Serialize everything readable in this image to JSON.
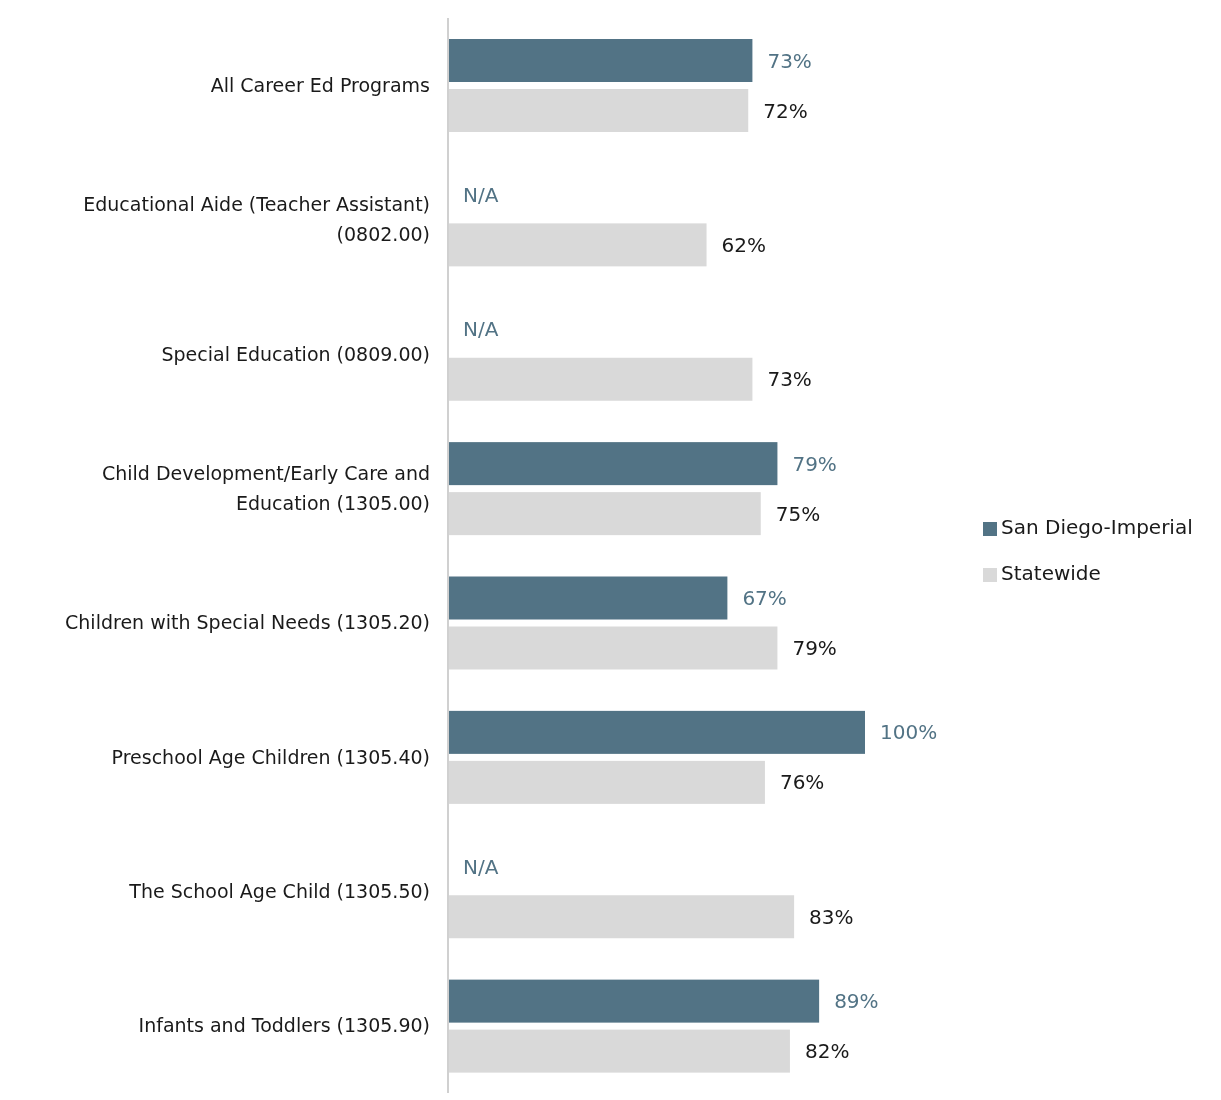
{
  "chart_data": {
    "type": "bar",
    "orientation": "horizontal",
    "categories": [
      "All Career Ed Programs",
      "Educational Aide (Teacher Assistant) (0802.00)",
      "Special Education (0809.00)",
      "Child Development/Early Care and Education (1305.00)",
      "Children with Special Needs (1305.20)",
      "Preschool Age Children (1305.40)",
      "The School Age Child (1305.50)",
      "Infants and Toddlers (1305.90)"
    ],
    "series": [
      {
        "name": "San Diego-Imperial",
        "color": "#527385",
        "values": [
          73,
          null,
          null,
          79,
          67,
          100,
          null,
          89
        ],
        "value_labels": [
          "73%",
          "N/A",
          "N/A",
          "79%",
          "67%",
          "100%",
          "N/A",
          "89%"
        ]
      },
      {
        "name": "Statewide",
        "color": "#d9d9d9",
        "values": [
          72,
          62,
          73,
          75,
          79,
          76,
          83,
          82
        ],
        "value_labels": [
          "72%",
          "62%",
          "73%",
          "75%",
          "79%",
          "76%",
          "83%",
          "82%"
        ]
      }
    ],
    "legend": "right"
  }
}
